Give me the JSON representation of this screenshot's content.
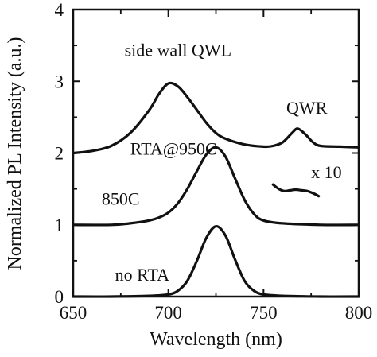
{
  "chart_data": {
    "type": "line",
    "xlabel": "Wavelength (nm)",
    "ylabel": "Normalized PL Intensity (a.u.)",
    "xlim": [
      650,
      800
    ],
    "ylim": [
      0,
      4
    ],
    "x_ticks": [
      "650",
      "700",
      "750",
      "800"
    ],
    "y_ticks": [
      "0",
      "1",
      "2",
      "3",
      "4"
    ],
    "grid": false,
    "legend": "none",
    "line_color": "#111111",
    "series": [
      {
        "name": "no RTA",
        "x": [
          650,
          670,
          690,
          700,
          705,
          710,
          715,
          720,
          725,
          730,
          735,
          740,
          745,
          750,
          760,
          780,
          800
        ],
        "y": [
          0.0,
          0.0,
          0.01,
          0.03,
          0.08,
          0.22,
          0.5,
          0.82,
          0.98,
          0.85,
          0.52,
          0.22,
          0.08,
          0.03,
          0.01,
          0.0,
          0.0
        ]
      },
      {
        "name": "850C",
        "x": [
          650,
          670,
          680,
          690,
          695,
          700,
          705,
          710,
          715,
          720,
          725,
          730,
          735,
          740,
          745,
          750,
          760,
          780,
          800
        ],
        "y": [
          1.0,
          1.0,
          1.02,
          1.06,
          1.1,
          1.17,
          1.3,
          1.5,
          1.75,
          1.98,
          2.08,
          1.95,
          1.65,
          1.35,
          1.15,
          1.06,
          1.02,
          1.0,
          1.0
        ]
      },
      {
        "name": "side wall QWL",
        "x": [
          650,
          660,
          670,
          680,
          690,
          695,
          700,
          705,
          710,
          715,
          720,
          725,
          730,
          740,
          750,
          755,
          760,
          765,
          768,
          772,
          776,
          780,
          790,
          800
        ],
        "y": [
          2.0,
          2.03,
          2.1,
          2.28,
          2.6,
          2.82,
          2.97,
          2.93,
          2.78,
          2.6,
          2.42,
          2.28,
          2.2,
          2.12,
          2.09,
          2.1,
          2.15,
          2.28,
          2.34,
          2.26,
          2.15,
          2.1,
          2.09,
          2.08
        ]
      },
      {
        "name": "x 10",
        "x": [
          755,
          758,
          761,
          764,
          767,
          770,
          773,
          776,
          779
        ],
        "y": [
          1.56,
          1.5,
          1.47,
          1.48,
          1.49,
          1.48,
          1.47,
          1.44,
          1.4
        ]
      }
    ],
    "annotations": [
      {
        "text": "side wall QWL",
        "x": 677,
        "y": 3.35
      },
      {
        "text": "QWR",
        "x": 762,
        "y": 2.55
      },
      {
        "text": "RTA@950C",
        "x": 680,
        "y": 1.98
      },
      {
        "text": "x 10",
        "x": 775,
        "y": 1.65
      },
      {
        "text": "850C",
        "x": 665,
        "y": 1.28
      },
      {
        "text": "no RTA",
        "x": 672,
        "y": 0.22
      }
    ]
  }
}
